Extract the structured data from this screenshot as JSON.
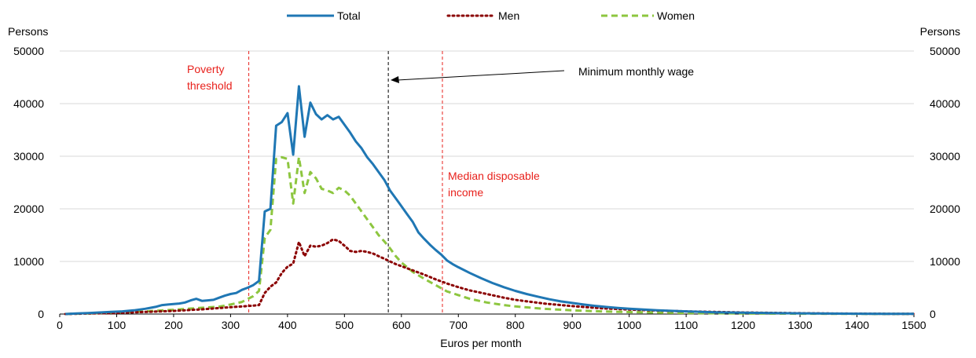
{
  "chart_data": {
    "type": "line",
    "title": "",
    "xlabel": "Euros per month",
    "ylabel_left": "Persons",
    "ylabel_right": "Persons",
    "xlim": [
      0,
      1500
    ],
    "ylim": [
      0,
      50000
    ],
    "x_ticks": [
      0,
      100,
      200,
      300,
      400,
      500,
      600,
      700,
      800,
      900,
      1000,
      1100,
      1200,
      1300,
      1400,
      1500
    ],
    "y_ticks": [
      0,
      10000,
      20000,
      30000,
      40000,
      50000
    ],
    "grid": "horizontal",
    "legend_position": "top-center",
    "series": [
      {
        "name": "Total",
        "color": "#1f77b4",
        "style": "solid",
        "points": [
          [
            10,
            0
          ],
          [
            30,
            100
          ],
          [
            50,
            200
          ],
          [
            70,
            300
          ],
          [
            90,
            400
          ],
          [
            110,
            500
          ],
          [
            130,
            700
          ],
          [
            150,
            1000
          ],
          [
            160,
            1200
          ],
          [
            170,
            1400
          ],
          [
            180,
            1700
          ],
          [
            190,
            1800
          ],
          [
            200,
            1900
          ],
          [
            210,
            2000
          ],
          [
            220,
            2200
          ],
          [
            230,
            2600
          ],
          [
            240,
            2900
          ],
          [
            250,
            2500
          ],
          [
            260,
            2600
          ],
          [
            270,
            2700
          ],
          [
            280,
            3100
          ],
          [
            290,
            3500
          ],
          [
            300,
            3800
          ],
          [
            310,
            4000
          ],
          [
            320,
            4600
          ],
          [
            330,
            5000
          ],
          [
            340,
            5500
          ],
          [
            350,
            6300
          ],
          [
            360,
            19500
          ],
          [
            370,
            20000
          ],
          [
            380,
            35800
          ],
          [
            390,
            36500
          ],
          [
            400,
            38200
          ],
          [
            410,
            30300
          ],
          [
            420,
            43300
          ],
          [
            430,
            33700
          ],
          [
            440,
            40200
          ],
          [
            450,
            38000
          ],
          [
            460,
            37000
          ],
          [
            470,
            37800
          ],
          [
            480,
            37000
          ],
          [
            490,
            37500
          ],
          [
            500,
            36000
          ],
          [
            510,
            34500
          ],
          [
            520,
            32800
          ],
          [
            530,
            31500
          ],
          [
            540,
            29800
          ],
          [
            550,
            28500
          ],
          [
            560,
            27000
          ],
          [
            570,
            25500
          ],
          [
            580,
            23500
          ],
          [
            590,
            22000
          ],
          [
            600,
            20500
          ],
          [
            610,
            19000
          ],
          [
            620,
            17500
          ],
          [
            630,
            15500
          ],
          [
            640,
            14300
          ],
          [
            650,
            13200
          ],
          [
            660,
            12200
          ],
          [
            670,
            11300
          ],
          [
            680,
            10200
          ],
          [
            690,
            9500
          ],
          [
            700,
            8900
          ],
          [
            720,
            7800
          ],
          [
            740,
            6800
          ],
          [
            760,
            5900
          ],
          [
            780,
            5100
          ],
          [
            800,
            4400
          ],
          [
            820,
            3800
          ],
          [
            840,
            3300
          ],
          [
            860,
            2800
          ],
          [
            880,
            2400
          ],
          [
            900,
            2100
          ],
          [
            920,
            1800
          ],
          [
            940,
            1550
          ],
          [
            960,
            1350
          ],
          [
            980,
            1150
          ],
          [
            1000,
            1000
          ],
          [
            1050,
            700
          ],
          [
            1100,
            500
          ],
          [
            1150,
            350
          ],
          [
            1200,
            250
          ],
          [
            1250,
            180
          ],
          [
            1300,
            130
          ],
          [
            1350,
            90
          ],
          [
            1400,
            60
          ],
          [
            1450,
            40
          ],
          [
            1500,
            25
          ]
        ]
      },
      {
        "name": "Men",
        "color": "#8b0000",
        "style": "dotted",
        "points": [
          [
            10,
            0
          ],
          [
            50,
            100
          ],
          [
            100,
            200
          ],
          [
            150,
            400
          ],
          [
            200,
            600
          ],
          [
            250,
            900
          ],
          [
            300,
            1300
          ],
          [
            340,
            1600
          ],
          [
            350,
            1700
          ],
          [
            360,
            4000
          ],
          [
            370,
            5200
          ],
          [
            380,
            6000
          ],
          [
            390,
            7800
          ],
          [
            400,
            9000
          ],
          [
            410,
            9600
          ],
          [
            420,
            13700
          ],
          [
            430,
            11000
          ],
          [
            440,
            13000
          ],
          [
            450,
            12800
          ],
          [
            460,
            13000
          ],
          [
            470,
            13500
          ],
          [
            480,
            14200
          ],
          [
            490,
            13900
          ],
          [
            500,
            13000
          ],
          [
            510,
            12000
          ],
          [
            520,
            11800
          ],
          [
            530,
            12000
          ],
          [
            540,
            11800
          ],
          [
            550,
            11500
          ],
          [
            560,
            11000
          ],
          [
            570,
            10500
          ],
          [
            580,
            10000
          ],
          [
            590,
            9500
          ],
          [
            600,
            9100
          ],
          [
            620,
            8300
          ],
          [
            640,
            7500
          ],
          [
            660,
            6600
          ],
          [
            680,
            5800
          ],
          [
            700,
            5100
          ],
          [
            720,
            4500
          ],
          [
            750,
            3800
          ],
          [
            780,
            3100
          ],
          [
            800,
            2700
          ],
          [
            850,
            2000
          ],
          [
            900,
            1500
          ],
          [
            950,
            1100
          ],
          [
            1000,
            850
          ],
          [
            1050,
            650
          ],
          [
            1100,
            500
          ],
          [
            1150,
            400
          ],
          [
            1200,
            300
          ],
          [
            1250,
            220
          ],
          [
            1300,
            160
          ],
          [
            1350,
            110
          ],
          [
            1400,
            80
          ],
          [
            1450,
            50
          ],
          [
            1500,
            30
          ]
        ]
      },
      {
        "name": "Women",
        "color": "#8dc63f",
        "style": "dashed",
        "points": [
          [
            10,
            0
          ],
          [
            50,
            100
          ],
          [
            100,
            300
          ],
          [
            150,
            500
          ],
          [
            200,
            800
          ],
          [
            250,
            1200
          ],
          [
            280,
            1400
          ],
          [
            300,
            1800
          ],
          [
            320,
            2300
          ],
          [
            340,
            3400
          ],
          [
            350,
            4400
          ],
          [
            360,
            14500
          ],
          [
            370,
            16000
          ],
          [
            380,
            29500
          ],
          [
            390,
            29800
          ],
          [
            400,
            29500
          ],
          [
            410,
            21000
          ],
          [
            420,
            29800
          ],
          [
            430,
            23000
          ],
          [
            440,
            27000
          ],
          [
            450,
            25800
          ],
          [
            460,
            23800
          ],
          [
            470,
            23500
          ],
          [
            480,
            23000
          ],
          [
            490,
            24000
          ],
          [
            500,
            23500
          ],
          [
            510,
            22500
          ],
          [
            520,
            21000
          ],
          [
            530,
            19500
          ],
          [
            540,
            18000
          ],
          [
            550,
            16500
          ],
          [
            560,
            15000
          ],
          [
            570,
            13800
          ],
          [
            580,
            12500
          ],
          [
            590,
            11000
          ],
          [
            600,
            9800
          ],
          [
            620,
            8000
          ],
          [
            640,
            6700
          ],
          [
            660,
            5500
          ],
          [
            680,
            4300
          ],
          [
            700,
            3600
          ],
          [
            720,
            2900
          ],
          [
            750,
            2200
          ],
          [
            780,
            1700
          ],
          [
            800,
            1450
          ],
          [
            850,
            1000
          ],
          [
            900,
            700
          ],
          [
            950,
            500
          ],
          [
            1000,
            380
          ],
          [
            1050,
            280
          ],
          [
            1100,
            200
          ],
          [
            1150,
            150
          ],
          [
            1200,
            110
          ],
          [
            1300,
            60
          ],
          [
            1400,
            30
          ],
          [
            1500,
            15
          ]
        ]
      }
    ],
    "reference_lines": [
      {
        "x": 332,
        "color": "#e8211c",
        "style": "dashed"
      },
      {
        "x": 577,
        "color": "#000000",
        "style": "dashed"
      },
      {
        "x": 672,
        "color": "#e8211c",
        "style": "dashed"
      }
    ],
    "annotations": {
      "poverty": {
        "lines": [
          "Poverty",
          "threshold"
        ],
        "color": "#e8211c"
      },
      "minimum_wage": {
        "text": "Minimum monthly wage",
        "color": "#000000"
      },
      "median": {
        "lines": [
          "Median disposable",
          "income"
        ],
        "color": "#e8211c"
      }
    }
  }
}
